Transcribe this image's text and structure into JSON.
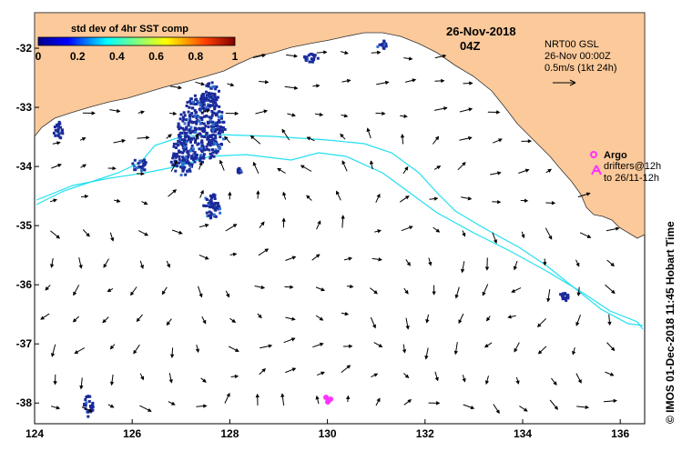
{
  "map": {
    "date": "26-Nov-2018",
    "time": "04Z",
    "colorbar": {
      "title": "std dev of 4hr SST comp",
      "ticks": [
        "0",
        "0.2",
        "0.4",
        "0.6",
        "0.8",
        "1"
      ]
    },
    "current_info": {
      "line1": "NRT00 GSL",
      "line2": "26-Nov 00:00Z",
      "line3": "0.5m/s (1kt 24h)"
    },
    "argo_label": "Argo",
    "drifters_line1": "drifters@12h",
    "drifters_line2": "to 26/11-12h",
    "credit": "© IMOS 01-Dec-2018 11:45 Hobart Time",
    "x_ticks": [
      "124",
      "126",
      "128",
      "130",
      "132",
      "134",
      "136"
    ],
    "y_ticks": [
      "-32",
      "-33",
      "-34",
      "-35",
      "-36",
      "-37",
      "-38"
    ],
    "colors": {
      "land": "#fbc99a",
      "ocean": "#ffffff",
      "isobath": "#22e0f0",
      "argo": "#ff33ff",
      "sst_patch": "#1a2a9a"
    },
    "argo_float_lon_lat": [
      130.05,
      -37.78
    ]
  }
}
